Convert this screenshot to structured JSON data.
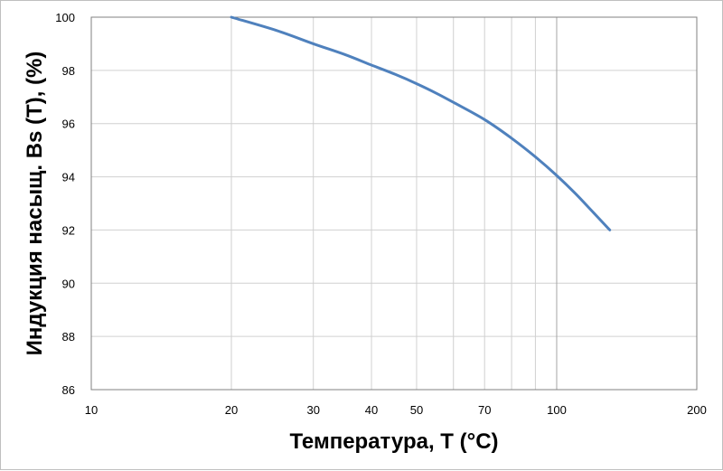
{
  "chart_data": {
    "type": "line",
    "title": "",
    "xlabel": "Температура, T (°C)",
    "ylabel": "Индукция насыщ. Bs (T), (%)",
    "x_scale": "log",
    "xlim": [
      10,
      200
    ],
    "ylim": [
      86,
      100
    ],
    "grid": true,
    "legend": "none",
    "x_ticks": [
      10,
      20,
      30,
      40,
      50,
      70,
      100,
      200
    ],
    "x_tick_labels": [
      "10",
      "20",
      "30",
      "40",
      "50",
      "70",
      "100",
      "200"
    ],
    "x_minor_grid": [
      60,
      80,
      90
    ],
    "y_ticks": [
      86,
      88,
      90,
      92,
      94,
      96,
      98,
      100
    ],
    "y_tick_labels": [
      "86",
      "88",
      "90",
      "92",
      "94",
      "96",
      "98",
      "100"
    ],
    "series": [
      {
        "color": "#4f81bd",
        "x": [
          20,
          25,
          30,
          35,
          40,
          45,
          50,
          55,
          60,
          70,
          80,
          90,
          100,
          110,
          120,
          130
        ],
        "y": [
          100,
          99.5,
          99.0,
          98.6,
          98.2,
          97.85,
          97.5,
          97.15,
          96.8,
          96.15,
          95.45,
          94.75,
          94.05,
          93.35,
          92.65,
          92.0
        ]
      }
    ]
  }
}
